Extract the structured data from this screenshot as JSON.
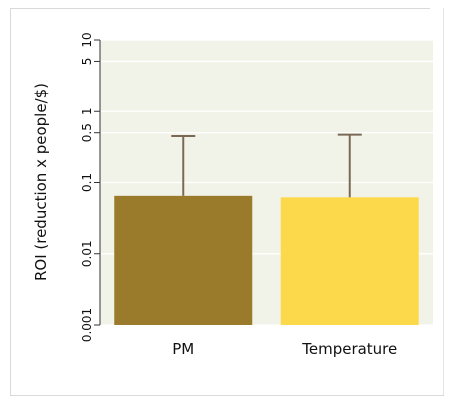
{
  "chart_data": {
    "type": "bar",
    "categories": [
      "PM",
      "Temperature"
    ],
    "values": [
      0.065,
      0.062
    ],
    "error_upper": [
      0.45,
      0.47
    ],
    "ylabel": "ROI (reduction x people/$)",
    "yscale": "log",
    "ylim": [
      0.001,
      10
    ],
    "yticks": [
      0.001,
      0.01,
      0.1,
      0.5,
      1,
      5,
      10
    ],
    "ytick_labels": [
      "0.001",
      "0.01",
      "0.1",
      "0.5",
      "1",
      "5",
      "10"
    ],
    "grid": true,
    "colors": {
      "bars": [
        "#9a7b2c",
        "#fcd94a"
      ],
      "error": "#7a6a55",
      "plot_bg": "#f2f3e8",
      "grid": "#ffffff"
    }
  }
}
